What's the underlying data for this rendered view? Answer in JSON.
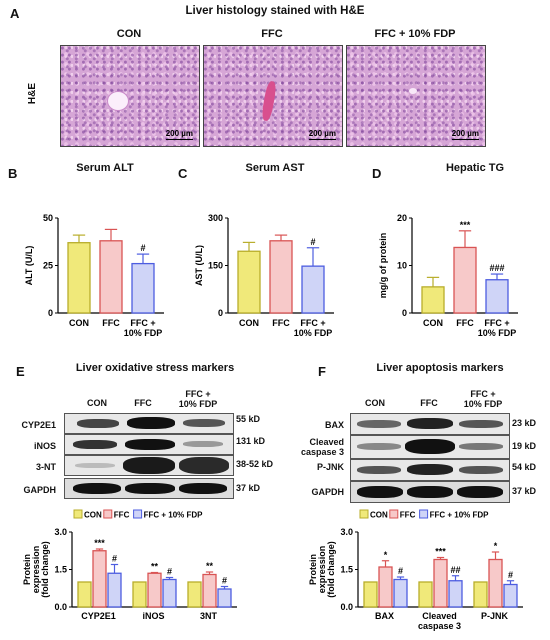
{
  "panels": {
    "A": {
      "letter": "A",
      "title": "Liver histology stained with H&E",
      "row_label": "H&E",
      "images": [
        {
          "label": "CON",
          "scale": "200 µm"
        },
        {
          "label": "FFC",
          "scale": "200 µm"
        },
        {
          "label": "FFC + 10% FDP",
          "scale": "200 µm"
        }
      ]
    },
    "B": {
      "letter": "B",
      "title": "Serum ALT",
      "ylabel": "ALT (U/L)",
      "ticks": [
        "0",
        "25",
        "50"
      ]
    },
    "C": {
      "letter": "C",
      "title": "Serum AST",
      "ylabel": "AST (U/L)",
      "ticks": [
        "0",
        "150",
        "300"
      ]
    },
    "D": {
      "letter": "D",
      "title": "Hepatic TG",
      "ylabel": "mg/g of protein",
      "ticks": [
        "0",
        "10",
        "20"
      ]
    },
    "E": {
      "letter": "E",
      "title": "Liver oxidative stress markers",
      "lanes": [
        "CON",
        "FFC",
        "FFC + 10% FDP"
      ],
      "rows": [
        {
          "label": "CYP2E1",
          "kd": "55 kD"
        },
        {
          "label": "iNOS",
          "kd": "131 kD"
        },
        {
          "label": "3-NT",
          "kd": "38-52 kD"
        },
        {
          "label": "GAPDH",
          "kd": "37 kD"
        }
      ],
      "ylabel": [
        "Protein",
        "expression",
        "(fold change)"
      ],
      "ticks": [
        "0.0",
        "1.5",
        "3.0"
      ]
    },
    "F": {
      "letter": "F",
      "title": "Liver apoptosis markers",
      "lanes": [
        "CON",
        "FFC",
        "FFC + 10% FDP"
      ],
      "rows": [
        {
          "label": "BAX",
          "kd": "23 kD"
        },
        {
          "label": "Cleaved caspase 3",
          "kd": "19 kD"
        },
        {
          "label": "P-JNK",
          "kd": "54 kD"
        },
        {
          "label": "GAPDH",
          "kd": "37 kD"
        }
      ],
      "ylabel": [
        "Protein",
        "expression",
        "(fold change)"
      ],
      "ticks": [
        "0.0",
        "1.5",
        "3.0"
      ]
    }
  },
  "colors": {
    "con": "#f0e97a",
    "con_edge": "#b8ad2a",
    "ffc": "#f7c9c9",
    "ffc_edge": "#d95454",
    "fdp": "#cfd4f7",
    "fdp_edge": "#4d5de0"
  },
  "chart_data": [
    {
      "type": "bar",
      "id": "B",
      "categories": [
        "CON",
        "FFC",
        "FFC + 10% FDP"
      ],
      "values": [
        37,
        38,
        26
      ],
      "errors": [
        4,
        6,
        5
      ],
      "annotations": [
        "",
        "",
        "#"
      ],
      "ylabel": "ALT (U/L)",
      "ylim": [
        0,
        50
      ],
      "title": "Serum ALT"
    },
    {
      "type": "bar",
      "id": "C",
      "categories": [
        "CON",
        "FFC",
        "FFC + 10% FDP"
      ],
      "values": [
        195,
        228,
        148
      ],
      "errors": [
        28,
        18,
        58
      ],
      "annotations": [
        "",
        "",
        "#"
      ],
      "ylabel": "AST (U/L)",
      "ylim": [
        0,
        300
      ],
      "title": "Serum AST"
    },
    {
      "type": "bar",
      "id": "D",
      "categories": [
        "CON",
        "FFC",
        "FFC + 10% FDP"
      ],
      "values": [
        5.5,
        13.8,
        7
      ],
      "errors": [
        2,
        3.5,
        1.2
      ],
      "annotations": [
        "",
        "***",
        "###"
      ],
      "ylabel": "mg/g of protein",
      "ylim": [
        0,
        20
      ],
      "title": "Hepatic TG"
    },
    {
      "type": "bar",
      "id": "E",
      "categories": [
        "CYP2E1",
        "iNOS",
        "3NT"
      ],
      "ylabel": "Protein expression (fold change)",
      "ylim": [
        0,
        3
      ],
      "legend": [
        "CON",
        "FFC",
        "FFC + 10% FDP"
      ],
      "series": [
        {
          "name": "CON",
          "values": [
            1,
            1,
            1
          ],
          "errors": [
            0,
            0,
            0
          ],
          "annotations": [
            "",
            "",
            ""
          ]
        },
        {
          "name": "FFC",
          "values": [
            2.25,
            1.35,
            1.3
          ],
          "errors": [
            0.07,
            0.03,
            0.1
          ],
          "annotations": [
            "***",
            "**",
            "**"
          ]
        },
        {
          "name": "FFC + 10% FDP",
          "values": [
            1.35,
            1.1,
            0.72
          ],
          "errors": [
            0.35,
            0.08,
            0.1
          ],
          "annotations": [
            "#",
            "#",
            "#"
          ]
        }
      ]
    },
    {
      "type": "bar",
      "id": "F",
      "categories": [
        "BAX",
        "Cleaved caspase 3",
        "P-JNK"
      ],
      "ylabel": "Protein expression (fold change)",
      "ylim": [
        0,
        3
      ],
      "legend": [
        "CON",
        "FFC",
        "FFC + 10% FDP"
      ],
      "series": [
        {
          "name": "CON",
          "values": [
            1,
            1,
            1
          ],
          "errors": [
            0,
            0,
            0
          ],
          "annotations": [
            "",
            "",
            ""
          ]
        },
        {
          "name": "FFC",
          "values": [
            1.6,
            1.9,
            1.9
          ],
          "errors": [
            0.25,
            0.08,
            0.3
          ],
          "annotations": [
            "*",
            "***",
            "*"
          ]
        },
        {
          "name": "FFC + 10% FDP",
          "values": [
            1.1,
            1.05,
            0.9
          ],
          "errors": [
            0.1,
            0.2,
            0.15
          ],
          "annotations": [
            "#",
            "##",
            "#"
          ]
        }
      ]
    }
  ]
}
